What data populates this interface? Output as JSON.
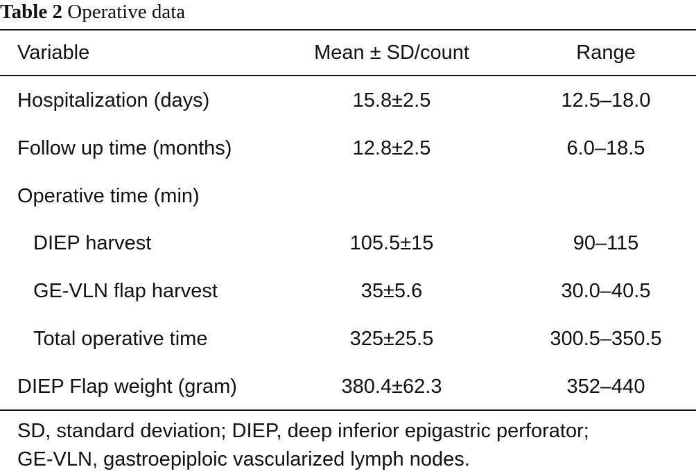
{
  "caption": {
    "label": "Table 2",
    "title": "Operative data"
  },
  "table": {
    "headers": {
      "variable": "Variable",
      "mean": "Mean ± SD/count",
      "range": "Range"
    },
    "rows": [
      {
        "variable": "Hospitalization (days)",
        "mean": "15.8±2.5",
        "range": "12.5–18.0"
      },
      {
        "variable": "Follow up time (months)",
        "mean": "12.8±2.5",
        "range": "6.0–18.5"
      },
      {
        "variable": "Operative time (min)",
        "mean": "",
        "range": ""
      },
      {
        "variable": "DIEP harvest",
        "mean": "105.5±15",
        "range": "90–115"
      },
      {
        "variable": "GE-VLN flap harvest",
        "mean": "35±5.6",
        "range": "30.0–40.5"
      },
      {
        "variable": "Total operative time",
        "mean": "325±25.5",
        "range": "300.5–350.5"
      },
      {
        "variable": "DIEP Flap weight (gram)",
        "mean": "380.4±62.3",
        "range": "352–440"
      }
    ]
  },
  "footnote": {
    "line1": "SD, standard deviation; DIEP, deep inferior epigastric perforator;",
    "line2": "GE-VLN, gastroepiploic vascularized lymph nodes."
  }
}
